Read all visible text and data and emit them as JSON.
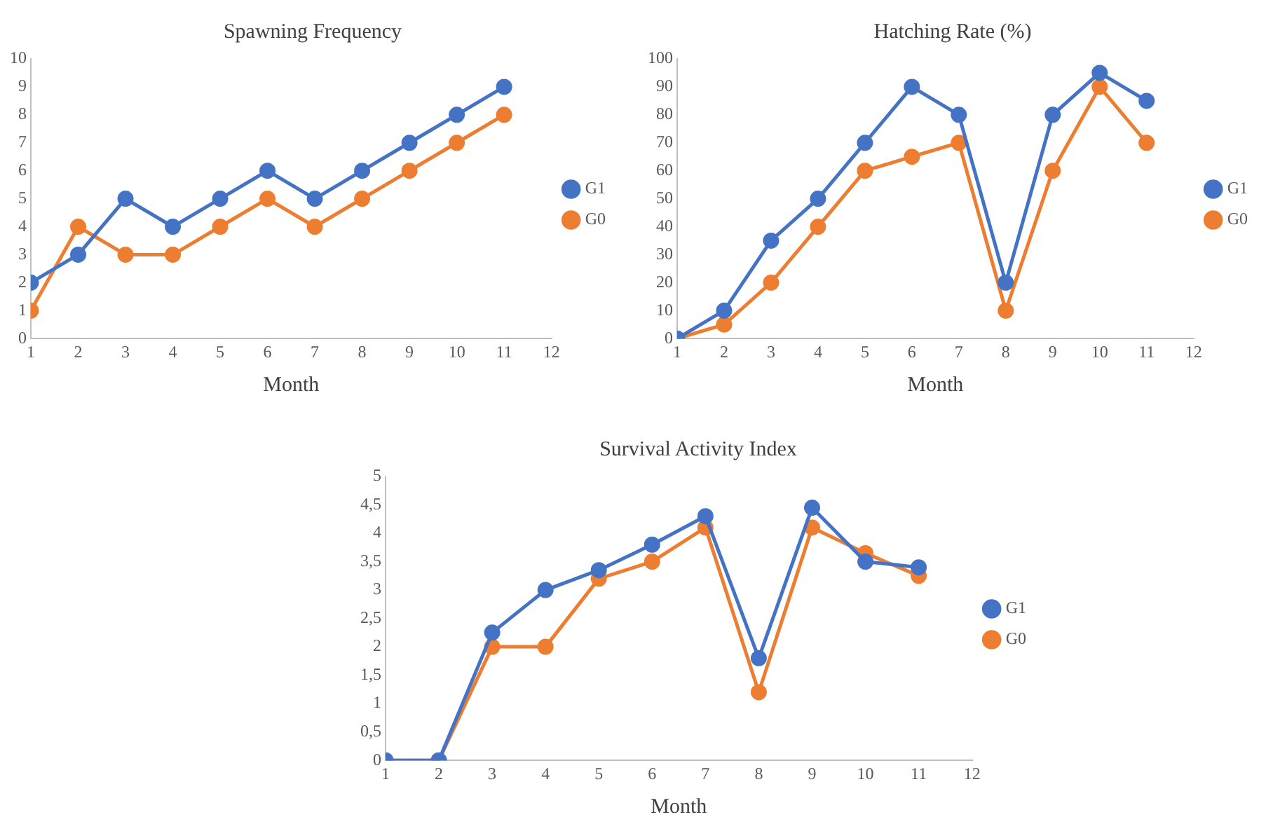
{
  "chart_data": [
    {
      "type": "line",
      "title": "Spawning Frequency",
      "xlabel": "Month",
      "x": [
        1,
        2,
        3,
        4,
        5,
        6,
        7,
        8,
        9,
        10,
        11
      ],
      "xlim": [
        1,
        12
      ],
      "xticks": [
        1,
        2,
        3,
        4,
        5,
        6,
        7,
        8,
        9,
        10,
        11,
        12
      ],
      "ylim": [
        0,
        10
      ],
      "yticks": [
        0,
        1,
        2,
        3,
        4,
        5,
        6,
        7,
        8,
        9,
        10
      ],
      "grid": false,
      "legend": "right",
      "marker": "circle",
      "line_style": "solid",
      "series": [
        {
          "name": "G1",
          "color": "#4472c4",
          "values": [
            2,
            3,
            5,
            4,
            5,
            6,
            5,
            6,
            7,
            8,
            9
          ]
        },
        {
          "name": "G0",
          "color": "#ed7d31",
          "values": [
            1,
            4,
            3,
            3,
            4,
            5,
            4,
            5,
            6,
            7,
            8
          ]
        }
      ]
    },
    {
      "type": "line",
      "title": "Hatching Rate (%)",
      "xlabel": "Month",
      "x": [
        1,
        2,
        3,
        4,
        5,
        6,
        7,
        8,
        9,
        10,
        11
      ],
      "xlim": [
        1,
        12
      ],
      "xticks": [
        1,
        2,
        3,
        4,
        5,
        6,
        7,
        8,
        9,
        10,
        11,
        12
      ],
      "ylim": [
        0,
        100
      ],
      "yticks": [
        0,
        10,
        20,
        30,
        40,
        50,
        60,
        70,
        80,
        90,
        100
      ],
      "grid": false,
      "legend": "right",
      "marker": "circle",
      "line_style": "solid",
      "series": [
        {
          "name": "G1",
          "color": "#4472c4",
          "values": [
            0,
            10,
            35,
            50,
            70,
            90,
            80,
            20,
            80,
            95,
            85
          ]
        },
        {
          "name": "G0",
          "color": "#ed7d31",
          "values": [
            0,
            5,
            20,
            40,
            60,
            65,
            70,
            10,
            60,
            90,
            70
          ]
        }
      ]
    },
    {
      "type": "line",
      "title": "Survival Activity Index",
      "xlabel": "Month",
      "x": [
        1,
        2,
        3,
        4,
        5,
        6,
        7,
        8,
        9,
        10,
        11
      ],
      "xlim": [
        1,
        12
      ],
      "xticks": [
        1,
        2,
        3,
        4,
        5,
        6,
        7,
        8,
        9,
        10,
        11,
        12
      ],
      "ylim": [
        0,
        5
      ],
      "yticks": [
        0,
        {
          "value": 0.5,
          "label": "0,5"
        },
        1,
        {
          "value": 1.5,
          "label": "1,5"
        },
        2,
        {
          "value": 2.5,
          "label": "2,5"
        },
        3,
        {
          "value": 3.5,
          "label": "3,5"
        },
        4,
        {
          "value": 4.5,
          "label": "4,5"
        },
        5
      ],
      "grid": false,
      "legend": "right",
      "marker": "circle",
      "line_style": "solid",
      "series": [
        {
          "name": "G1",
          "color": "#4472c4",
          "values": [
            0,
            0,
            2.25,
            3,
            3.35,
            3.8,
            4.3,
            1.8,
            4.45,
            3.5,
            3.4
          ]
        },
        {
          "name": "G0",
          "color": "#ed7d31",
          "values": [
            0,
            0,
            2,
            2,
            3.2,
            3.5,
            4.1,
            1.2,
            4.1,
            3.65,
            3.25
          ]
        }
      ]
    }
  ]
}
